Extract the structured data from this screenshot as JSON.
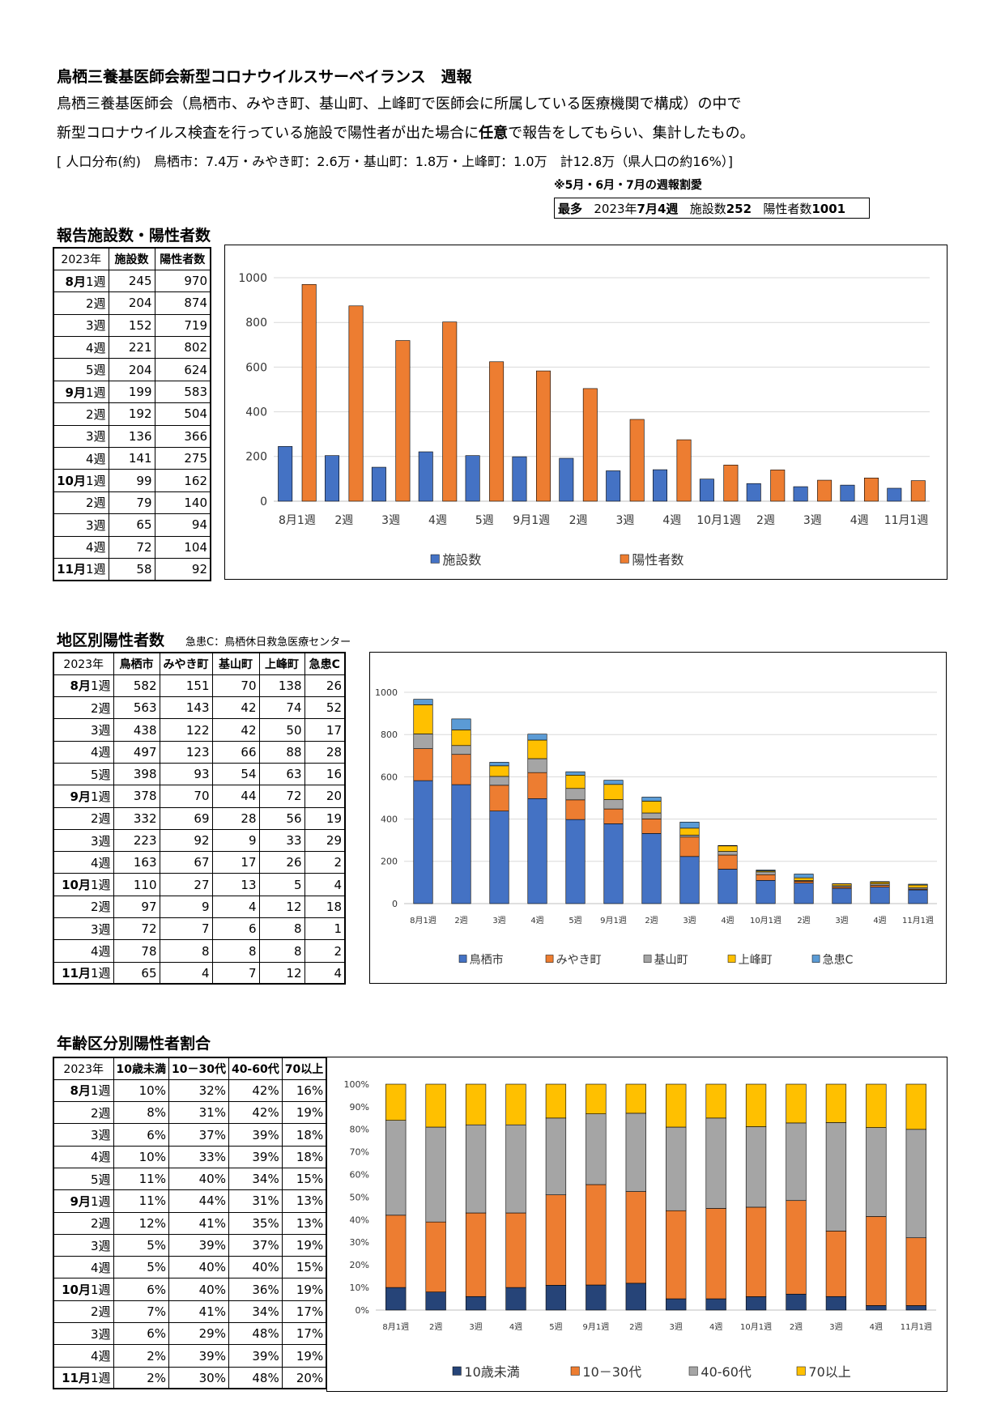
{
  "header": {
    "title": "鳥栖三養基医師会新型コロナウイルスサーベイランス　週報",
    "intro_line1": "鳥栖三養基医師会（鳥栖市、みやき町、基山町、上峰町で医師会に所属している医療機関で構成）の中で",
    "intro_line2_a": "新型コロナウイルス検査を行っている施設で陽性者が出た場合に",
    "intro_line2_b": "任意",
    "intro_line2_c": "で報告をしてもらい、集計したもの。",
    "population": "[ 人口分布(約)　鳥栖市：7.4万・みやき町：2.6万・基山町：1.8万・上峰町：1.0万　計12.8万（県人口の約16%）]",
    "note": "※5月・6月・7月の週報割愛",
    "max_label": "最多",
    "max_week_a": "2023年",
    "max_week_b": "7月4週",
    "max_fac_a": "施設数",
    "max_fac_b": "252",
    "max_pos_a": "陽性者数",
    "max_pos_b": "1001"
  },
  "weeks": [
    {
      "m": "8月",
      "w": "1週"
    },
    {
      "m": "",
      "w": "2週"
    },
    {
      "m": "",
      "w": "3週"
    },
    {
      "m": "",
      "w": "4週"
    },
    {
      "m": "",
      "w": "5週"
    },
    {
      "m": "9月",
      "w": "1週"
    },
    {
      "m": "",
      "w": "2週"
    },
    {
      "m": "",
      "w": "3週"
    },
    {
      "m": "",
      "w": "4週"
    },
    {
      "m": "10月",
      "w": "1週"
    },
    {
      "m": "",
      "w": "2週"
    },
    {
      "m": "",
      "w": "3週"
    },
    {
      "m": "",
      "w": "4週"
    },
    {
      "m": "11月",
      "w": "1週"
    }
  ],
  "section1": {
    "title": "報告施設数・陽性者数",
    "headers": [
      "2023年",
      "施設数",
      "陽性者数"
    ],
    "rows": [
      [
        245,
        970
      ],
      [
        204,
        874
      ],
      [
        152,
        719
      ],
      [
        221,
        802
      ],
      [
        204,
        624
      ],
      [
        199,
        583
      ],
      [
        192,
        504
      ],
      [
        136,
        366
      ],
      [
        141,
        275
      ],
      [
        99,
        162
      ],
      [
        79,
        140
      ],
      [
        65,
        94
      ],
      [
        72,
        104
      ],
      [
        58,
        92
      ]
    ]
  },
  "section2": {
    "title": "地区別陽性者数",
    "note": "急患C：鳥栖休日救急医療センター",
    "headers": [
      "2023年",
      "鳥栖市",
      "みやき町",
      "基山町",
      "上峰町",
      "急患C"
    ],
    "rows": [
      [
        582,
        151,
        70,
        138,
        26
      ],
      [
        563,
        143,
        42,
        74,
        52
      ],
      [
        438,
        122,
        42,
        50,
        17
      ],
      [
        497,
        123,
        66,
        88,
        28
      ],
      [
        398,
        93,
        54,
        63,
        16
      ],
      [
        378,
        70,
        44,
        72,
        20
      ],
      [
        332,
        69,
        28,
        56,
        19
      ],
      [
        223,
        92,
        9,
        33,
        29
      ],
      [
        163,
        67,
        17,
        26,
        2
      ],
      [
        110,
        27,
        13,
        5,
        4
      ],
      [
        97,
        9,
        4,
        12,
        18
      ],
      [
        72,
        7,
        6,
        8,
        1
      ],
      [
        78,
        8,
        8,
        8,
        2
      ],
      [
        65,
        4,
        7,
        12,
        4
      ]
    ]
  },
  "section3": {
    "title": "年齢区分別陽性者割合",
    "headers": [
      "2023年",
      "10歳未満",
      "10－30代",
      "40-60代",
      "70以上"
    ],
    "rows": [
      [
        "10%",
        "32%",
        "42%",
        "16%"
      ],
      [
        "8%",
        "31%",
        "42%",
        "19%"
      ],
      [
        "6%",
        "37%",
        "39%",
        "18%"
      ],
      [
        "10%",
        "33%",
        "39%",
        "18%"
      ],
      [
        "11%",
        "40%",
        "34%",
        "15%"
      ],
      [
        "11%",
        "44%",
        "31%",
        "13%"
      ],
      [
        "12%",
        "41%",
        "35%",
        "13%"
      ],
      [
        "5%",
        "39%",
        "37%",
        "19%"
      ],
      [
        "5%",
        "40%",
        "40%",
        "15%"
      ],
      [
        "6%",
        "40%",
        "36%",
        "19%"
      ],
      [
        "7%",
        "41%",
        "34%",
        "17%"
      ],
      [
        "6%",
        "29%",
        "48%",
        "17%"
      ],
      [
        "2%",
        "39%",
        "39%",
        "19%"
      ],
      [
        "2%",
        "30%",
        "48%",
        "20%"
      ]
    ]
  },
  "chart_data": [
    {
      "type": "bar",
      "categories": [
        "8月1週",
        "2週",
        "3週",
        "4週",
        "5週",
        "9月1週",
        "2週",
        "3週",
        "4週",
        "10月1週",
        "2週",
        "3週",
        "4週",
        "11月1週"
      ],
      "series": [
        {
          "name": "施設数",
          "color": "#4472c4",
          "values": [
            245,
            204,
            152,
            221,
            204,
            199,
            192,
            136,
            141,
            99,
            79,
            65,
            72,
            58
          ]
        },
        {
          "name": "陽性者数",
          "color": "#ed7d31",
          "values": [
            970,
            874,
            719,
            802,
            624,
            583,
            504,
            366,
            275,
            162,
            140,
            94,
            104,
            92
          ]
        }
      ],
      "yticks": [
        "0",
        "200",
        "400",
        "600",
        "800",
        "1000"
      ],
      "ylim": [
        0,
        1000
      ],
      "grid": true,
      "legend": "bottom"
    },
    {
      "type": "bar-stacked",
      "categories": [
        "8月1週",
        "2週",
        "3週",
        "4週",
        "5週",
        "9月1週",
        "2週",
        "3週",
        "4週",
        "10月1週",
        "2週",
        "3週",
        "4週",
        "11月1週"
      ],
      "series": [
        {
          "name": "鳥栖市",
          "color": "#4472c4",
          "values": [
            582,
            563,
            438,
            497,
            398,
            378,
            332,
            223,
            163,
            110,
            97,
            72,
            78,
            65
          ]
        },
        {
          "name": "みやき町",
          "color": "#ed7d31",
          "values": [
            151,
            143,
            122,
            123,
            93,
            70,
            69,
            92,
            67,
            27,
            9,
            7,
            8,
            4
          ]
        },
        {
          "name": "基山町",
          "color": "#a5a5a5",
          "values": [
            70,
            42,
            42,
            66,
            54,
            44,
            28,
            9,
            17,
            13,
            4,
            6,
            8,
            7
          ]
        },
        {
          "name": "上峰町",
          "color": "#ffc000",
          "values": [
            138,
            74,
            50,
            88,
            63,
            72,
            56,
            33,
            26,
            5,
            12,
            8,
            8,
            12
          ]
        },
        {
          "name": "急患C",
          "color": "#5b9bd5",
          "values": [
            26,
            52,
            17,
            28,
            16,
            20,
            19,
            29,
            2,
            4,
            18,
            1,
            2,
            4
          ]
        }
      ],
      "yticks": [
        "0",
        "200",
        "400",
        "600",
        "800",
        "1000"
      ],
      "ylim": [
        0,
        1000
      ],
      "grid": true,
      "legend": "bottom"
    },
    {
      "type": "bar-stacked-percent",
      "categories": [
        "8月1週",
        "2週",
        "3週",
        "4週",
        "5週",
        "9月1週",
        "2週",
        "3週",
        "4週",
        "10月1週",
        "2週",
        "3週",
        "4週",
        "11月1週"
      ],
      "series": [
        {
          "name": "10歳未満",
          "color": "#264478",
          "values": [
            10,
            8,
            6,
            10,
            11,
            11,
            12,
            5,
            5,
            6,
            7,
            6,
            2,
            2
          ]
        },
        {
          "name": "10－30代",
          "color": "#ed7d31",
          "values": [
            32,
            31,
            37,
            33,
            40,
            44,
            41,
            39,
            40,
            40,
            41,
            29,
            39,
            30
          ]
        },
        {
          "name": "40-60代",
          "color": "#a5a5a5",
          "values": [
            42,
            42,
            39,
            39,
            34,
            31,
            35,
            37,
            40,
            36,
            34,
            48,
            39,
            48
          ]
        },
        {
          "name": "70以上",
          "color": "#ffc000",
          "values": [
            16,
            19,
            18,
            18,
            15,
            13,
            13,
            19,
            15,
            19,
            17,
            17,
            19,
            20
          ]
        }
      ],
      "yticks": [
        "0%",
        "10%",
        "20%",
        "30%",
        "40%",
        "50%",
        "60%",
        "70%",
        "80%",
        "90%",
        "100%"
      ],
      "ylim": [
        0,
        100
      ],
      "grid": false,
      "legend": "bottom"
    }
  ]
}
